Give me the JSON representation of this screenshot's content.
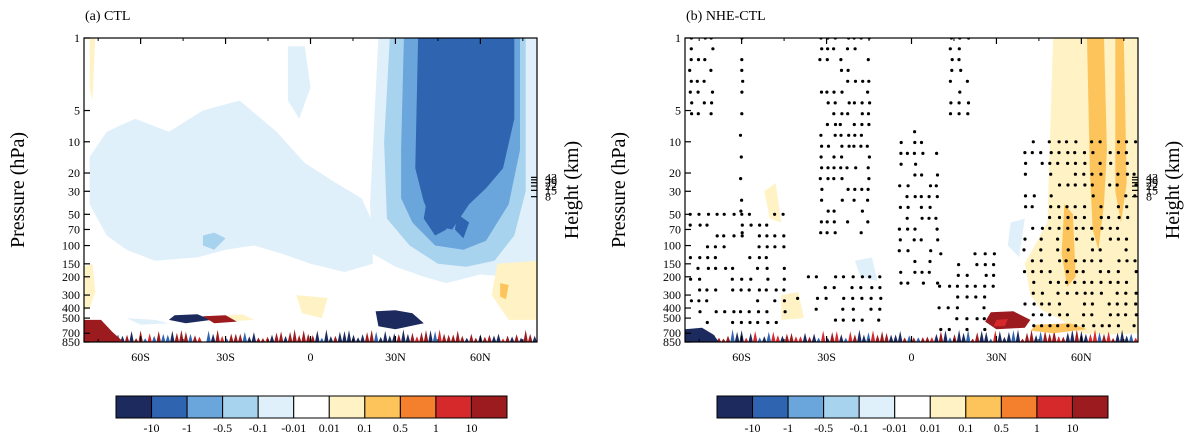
{
  "panels": [
    {
      "id": "a",
      "title": "(a) CTL",
      "ylabel_left": "Pressure (hPa)",
      "ylabel_right": "Height (km)",
      "stippled": false
    },
    {
      "id": "b",
      "title": "(b) NHE-CTL",
      "ylabel_left": "Pressure (hPa)",
      "ylabel_right": "Height (km)",
      "stippled": true
    }
  ],
  "colorbar": {
    "labels": [
      "-10",
      "-1",
      "-0.5",
      "-0.1",
      "-0.01",
      "0.01",
      "0.1",
      "0.5",
      "1",
      "10"
    ],
    "colors": [
      "#1c2a5e",
      "#2e64b0",
      "#6aa5db",
      "#a8d3ef",
      "#e0f0fa",
      "#ffffff",
      "#fff2c4",
      "#fcc45a",
      "#f4802e",
      "#d6292b",
      "#9b1b1f"
    ]
  },
  "chart_data": [
    {
      "type": "heatmap",
      "title": "(a) CTL",
      "ylabel": "Pressure (hPa)",
      "y2label": "Height (km)",
      "x_ticks": [
        "60S",
        "30S",
        "0",
        "30N",
        "60N"
      ],
      "x_tick_values": [
        -60,
        -30,
        0,
        30,
        60
      ],
      "xlim": [
        -80,
        80
      ],
      "y_ticks": [
        "1",
        "5",
        "10",
        "20",
        "30",
        "50",
        "70",
        "100",
        "150",
        "200",
        "300",
        "400",
        "500",
        "700",
        "850"
      ],
      "y_tick_values": [
        1,
        5,
        10,
        20,
        30,
        50,
        70,
        100,
        150,
        200,
        300,
        400,
        500,
        700,
        850
      ],
      "ylim": [
        850,
        1
      ],
      "y_scale": "log",
      "y2_ticks": [
        "43",
        "36",
        "29",
        "22",
        "15",
        "8"
      ],
      "y2_tick_values": [
        43,
        36,
        29,
        22,
        15,
        8
      ],
      "levels": [
        -10,
        -1,
        -0.5,
        -0.1,
        -0.01,
        0.01,
        0.1,
        0.5,
        1,
        10
      ],
      "features": [
        {
          "lat": [
            25,
            75
          ],
          "p": [
            1,
            60
          ],
          "level_range": [
            -10,
            -1
          ]
        },
        {
          "lat": [
            20,
            75
          ],
          "p": [
            1,
            150
          ],
          "level_range": [
            -1,
            -0.1
          ]
        },
        {
          "lat": [
            -80,
            20
          ],
          "p": [
            1,
            200
          ],
          "level_range": [
            -0.1,
            -0.01
          ]
        }
      ]
    },
    {
      "type": "heatmap",
      "title": "(b) NHE-CTL",
      "ylabel": "Pressure (hPa)",
      "y2label": "Height (km)",
      "x_ticks": [
        "60S",
        "30S",
        "0",
        "30N",
        "60N"
      ],
      "x_tick_values": [
        -60,
        -30,
        0,
        30,
        60
      ],
      "xlim": [
        -80,
        80
      ],
      "y_ticks": [
        "1",
        "5",
        "10",
        "20",
        "30",
        "50",
        "70",
        "100",
        "150",
        "200",
        "300",
        "400",
        "500",
        "700",
        "850"
      ],
      "y_tick_values": [
        1,
        5,
        10,
        20,
        30,
        50,
        70,
        100,
        150,
        200,
        300,
        400,
        500,
        700,
        850
      ],
      "ylim": [
        850,
        1
      ],
      "y_scale": "log",
      "y2_ticks": [
        "43",
        "36",
        "29",
        "22",
        "15",
        "8"
      ],
      "y2_tick_values": [
        43,
        36,
        29,
        22,
        15,
        8
      ],
      "levels": [
        -10,
        -1,
        -0.5,
        -0.1,
        -0.01,
        0.01,
        0.1,
        0.5,
        1,
        10
      ],
      "features": [
        {
          "lat": [
            40,
            80
          ],
          "p": [
            1,
            700
          ],
          "level_range": [
            0.01,
            0.5
          ]
        },
        {
          "lat": [
            63,
            68
          ],
          "p": [
            1,
            30
          ],
          "level_range": [
            0.5,
            1
          ]
        }
      ],
      "stippling": "significant regions"
    }
  ]
}
